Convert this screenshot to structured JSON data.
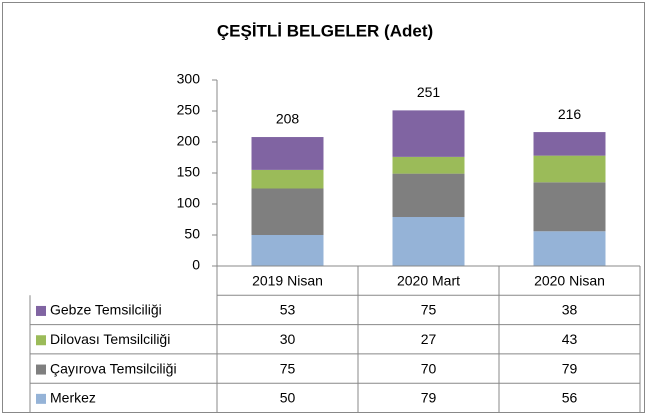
{
  "chart_data": {
    "type": "stacked_bar",
    "title": "ÇEŞİTLİ BELGELER (Adet)",
    "categories": [
      "2019 Nisan",
      "2020 Mart",
      "2020 Nisan"
    ],
    "series": [
      {
        "name": "Gebze Temsilciliği",
        "color": "#8064a2",
        "values": [
          53,
          75,
          38
        ]
      },
      {
        "name": "Dilovası Temsilciliği",
        "color": "#9bbb59",
        "values": [
          30,
          27,
          43
        ]
      },
      {
        "name": "Çayırova Temsilciliği",
        "color": "#7f7f7f",
        "values": [
          75,
          70,
          79
        ]
      },
      {
        "name": "Merkez",
        "color": "#95b3d7",
        "values": [
          50,
          79,
          56
        ]
      }
    ],
    "totals": [
      208,
      251,
      216
    ],
    "ylim": [
      0,
      300
    ],
    "yticks": [
      0,
      50,
      100,
      150,
      200,
      250,
      300
    ],
    "grid": false,
    "data_table": true
  }
}
